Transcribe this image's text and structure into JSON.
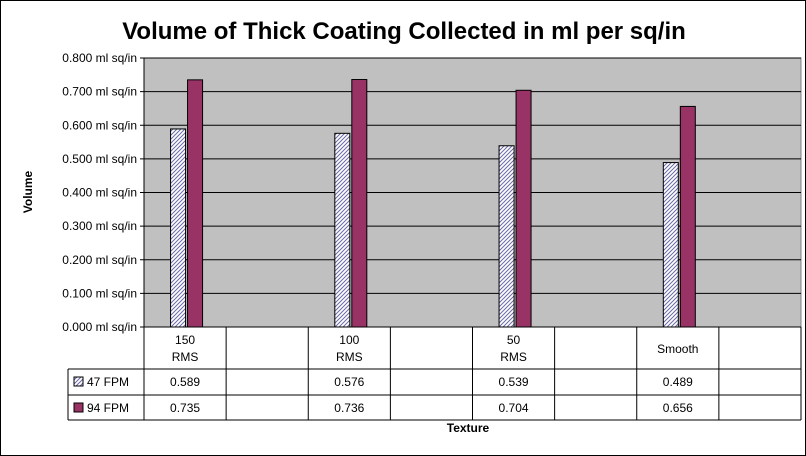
{
  "chart_data": {
    "type": "bar",
    "title": "Volume of  Thick Coating Collected in ml per sq/in",
    "xlabel": "Texture",
    "ylabel": "Volume",
    "categories": [
      [
        "150",
        "RMS"
      ],
      [
        "100",
        "RMS"
      ],
      [
        "50",
        "RMS"
      ],
      [
        "Smooth"
      ]
    ],
    "ylim": [
      0,
      0.8
    ],
    "yticks": [
      0,
      0.1,
      0.2,
      0.3,
      0.4,
      0.5,
      0.6,
      0.7,
      0.8
    ],
    "ytick_labels": [
      "0.000 ml sq/in",
      "0.100 ml sq/in",
      "0.200 ml sq/in",
      "0.300 ml sq/in",
      "0.400 ml sq/in",
      "0.500 ml sq/in",
      "0.600 ml sq/in",
      "0.700 ml sq/in",
      "0.800 ml sq/in"
    ],
    "grid": true,
    "legend": "data-table",
    "series": [
      {
        "name": "47 FPM",
        "values": [
          0.589,
          0.576,
          0.539,
          0.489
        ],
        "value_labels": [
          "0.589",
          "0.576",
          "0.539",
          "0.489"
        ],
        "color": "#ffffff",
        "pattern": "diagonal-hatch",
        "pattern_color": "#6a6aa8"
      },
      {
        "name": "94 FPM",
        "values": [
          0.735,
          0.736,
          0.704,
          0.656
        ],
        "value_labels": [
          "0.735",
          "0.736",
          "0.704",
          "0.656"
        ],
        "color": "#993366"
      }
    ],
    "plot_background": "#c0c0c0"
  }
}
